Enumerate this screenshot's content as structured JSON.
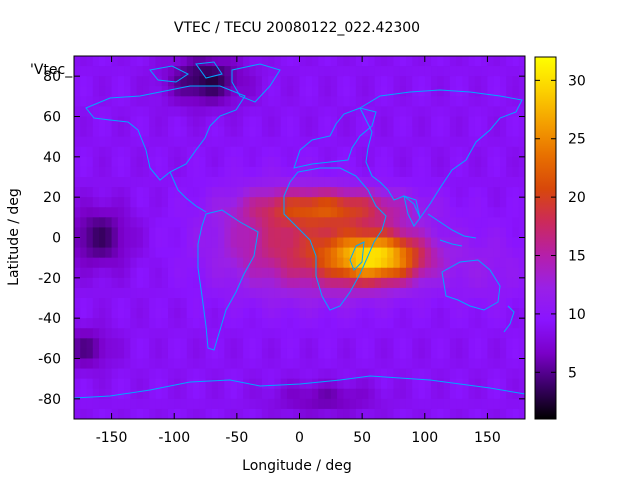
{
  "chart_data": {
    "type": "heatmap",
    "title": "VTEC / TECU 20080122_022.42300",
    "xlabel": "Longitude / deg",
    "ylabel": "Latitude / deg",
    "series_label": "'Vtec_",
    "xlim": [
      -180,
      180
    ],
    "ylim": [
      -90,
      90
    ],
    "x_ticks": [
      -150,
      -100,
      -50,
      0,
      50,
      100,
      150
    ],
    "y_ticks": [
      -80,
      -60,
      -40,
      -20,
      0,
      20,
      40,
      60,
      80
    ],
    "colorbar": {
      "range": [
        1,
        32
      ],
      "ticks": [
        5,
        10,
        15,
        20,
        25,
        30
      ],
      "palette": [
        "#000000",
        "#3a0066",
        "#7a00c8",
        "#8a14ff",
        "#9a20e6",
        "#b61fa8",
        "#cc2a5a",
        "#d8480a",
        "#e87000",
        "#f4a000",
        "#fcd200",
        "#ffff00"
      ]
    },
    "coastline_color": "#00a8ff",
    "peak": {
      "lon": 62,
      "lat": -10,
      "value": 31
    },
    "secondary_crest": {
      "lon": 25,
      "lat": 15,
      "value": 18
    }
  }
}
